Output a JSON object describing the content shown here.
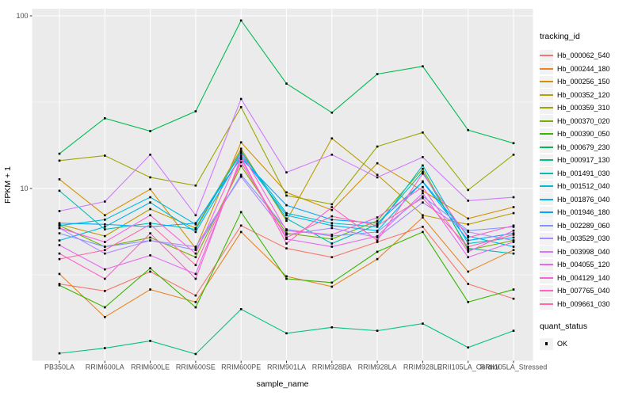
{
  "chart_data": {
    "type": "line",
    "title": "",
    "xlabel": "sample_name",
    "ylabel": "FPKM + 1",
    "y_scale": "log10",
    "ylim": [
      1,
      110
    ],
    "y_ticks": [
      {
        "label": "100",
        "value": 100
      },
      {
        "label": "10",
        "value": 10
      }
    ],
    "y_minor": [
      31.62,
      3.162
    ],
    "grid": "on",
    "legend_position": "right",
    "categories": [
      "PB350LA",
      "RRIM600LA",
      "RRIM600LE",
      "RRIM600SE",
      "RRIM600PE",
      "RRIM901LA",
      "RRIM928BA",
      "RRIM928LA",
      "RRIM928LE",
      "RRII105LA_Control",
      "RRII105LA_Stressed"
    ],
    "series": [
      {
        "name": "Hb_000062_540",
        "color": "#F8766D",
        "values": [
          2.8,
          2.55,
          3.3,
          2.4,
          6.1,
          4.5,
          4.0,
          4.9,
          6.0,
          2.8,
          2.3
        ]
      },
      {
        "name": "Hb_000244_180",
        "color": "#E88526",
        "values": [
          3.2,
          1.8,
          2.6,
          2.2,
          5.6,
          3.1,
          2.7,
          3.9,
          6.8,
          3.3,
          4.4
        ]
      },
      {
        "name": "Hb_000256_150",
        "color": "#D39200",
        "values": [
          11.3,
          7.0,
          9.9,
          4.5,
          18.5,
          9.5,
          7.5,
          14.0,
          9.7,
          6.7,
          7.8
        ]
      },
      {
        "name": "Hb_000352_120",
        "color": "#BB9D00",
        "values": [
          6.2,
          5.3,
          7.6,
          5.9,
          17.0,
          6.5,
          19.5,
          12.0,
          7.0,
          6.2,
          7.2
        ]
      },
      {
        "name": "Hb_000359_310",
        "color": "#9DA700",
        "values": [
          14.5,
          15.5,
          11.6,
          10.4,
          29.6,
          9.1,
          8.1,
          17.5,
          21.1,
          9.8,
          15.7
        ]
      },
      {
        "name": "Hb_000370_020",
        "color": "#75B000",
        "values": [
          6.1,
          4.6,
          5.2,
          4.0,
          13.5,
          5.5,
          5.1,
          6.5,
          13.0,
          4.4,
          5.0
        ]
      },
      {
        "name": "Hb_000390_050",
        "color": "#39B600",
        "values": [
          2.75,
          2.05,
          3.45,
          2.05,
          7.3,
          3.0,
          2.85,
          4.3,
          5.6,
          2.2,
          2.6
        ]
      },
      {
        "name": "Hb_000679_230",
        "color": "#00BC51",
        "values": [
          15.9,
          25.5,
          21.5,
          28.0,
          94.0,
          40.5,
          27.5,
          46.0,
          51.0,
          21.8,
          18.3
        ]
      },
      {
        "name": "Hb_000917_130",
        "color": "#00C087",
        "values": [
          1.11,
          1.19,
          1.31,
          1.1,
          2.0,
          1.45,
          1.57,
          1.5,
          1.65,
          1.2,
          1.5
        ]
      },
      {
        "name": "Hb_001491_030",
        "color": "#00C0B2",
        "values": [
          9.7,
          5.8,
          6.3,
          5.8,
          16.5,
          6.7,
          4.8,
          6.2,
          12.5,
          4.5,
          4.2
        ]
      },
      {
        "name": "Hb_001512_040",
        "color": "#00BDD2",
        "values": [
          6.1,
          6.6,
          8.9,
          6.2,
          16.0,
          7.2,
          6.3,
          6.0,
          13.6,
          4.8,
          5.2
        ]
      },
      {
        "name": "Hb_001876_040",
        "color": "#00B5EC",
        "values": [
          5.0,
          6.0,
          8.3,
          5.6,
          15.5,
          7.0,
          6.1,
          5.7,
          11.0,
          5.3,
          4.6
        ]
      },
      {
        "name": "Hb_001946_180",
        "color": "#00A7FF",
        "values": [
          6.3,
          6.2,
          6.0,
          6.3,
          15.0,
          8.0,
          6.6,
          6.3,
          10.9,
          5.0,
          5.5
        ]
      },
      {
        "name": "Hb_002289_060",
        "color": "#7F96FF",
        "values": [
          5.5,
          4.6,
          5.0,
          4.4,
          12.0,
          5.8,
          5.3,
          5.6,
          9.0,
          5.7,
          6.0
        ]
      },
      {
        "name": "Hb_003529_030",
        "color": "#AC88FF",
        "values": [
          5.9,
          4.2,
          5.0,
          4.6,
          11.7,
          5.4,
          5.9,
          5.2,
          8.3,
          5.6,
          5.0
        ]
      },
      {
        "name": "Hb_003998_040",
        "color": "#CF78FF",
        "values": [
          7.4,
          8.4,
          15.7,
          7.0,
          33.0,
          12.4,
          15.7,
          11.6,
          15.2,
          8.5,
          8.9
        ]
      },
      {
        "name": "Hb_004055_120",
        "color": "#E669F2",
        "values": [
          4.7,
          3.4,
          4.1,
          3.2,
          14.8,
          5.1,
          4.6,
          5.3,
          9.4,
          4.0,
          4.9
        ]
      },
      {
        "name": "Hb_004129_140",
        "color": "#F763DF",
        "values": [
          5.9,
          4.9,
          7.0,
          4.2,
          16.2,
          5.7,
          5.4,
          6.8,
          10.2,
          4.3,
          5.7
        ]
      },
      {
        "name": "Hb_007765_040",
        "color": "#FF61C7",
        "values": [
          4.2,
          3.0,
          5.5,
          3.0,
          15.2,
          4.8,
          7.8,
          5.0,
          12.2,
          5.2,
          6.1
        ]
      },
      {
        "name": "Hb_009661_030",
        "color": "#FF68A8",
        "values": [
          3.9,
          4.4,
          6.2,
          3.6,
          14.2,
          5.2,
          6.9,
          6.1,
          8.8,
          4.6,
          5.4
        ]
      }
    ],
    "point_marker": "black-square",
    "legend": {
      "title": "tracking_id"
    },
    "legend2": {
      "title": "quant_status",
      "items": [
        {
          "label": "OK",
          "marker": "black-square"
        }
      ]
    },
    "colors": {
      "panel_bg": "#EBEBEB",
      "grid": "#FFFFFF",
      "axis_text": "#4D4D4D",
      "axis_title": "#000000",
      "tick": "#333333",
      "legend_key_bg": "#F2F2F2",
      "marker": "#000000"
    }
  }
}
